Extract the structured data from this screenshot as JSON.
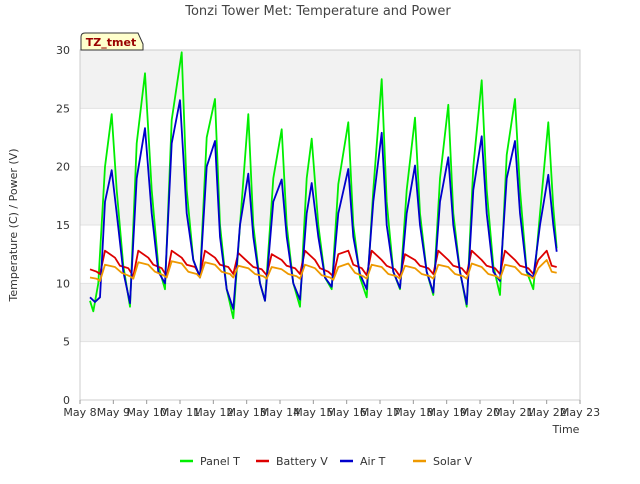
{
  "chart_data": {
    "type": "line",
    "title": "Tonzi Tower Met: Temperature and Power",
    "xlabel": "Time",
    "ylabel": "Temperature (C) / Power (V)",
    "badge": "TZ_tmet",
    "ylim": [
      0,
      30
    ],
    "yticks": [
      0,
      5,
      10,
      15,
      20,
      25,
      30
    ],
    "xlim": [
      8,
      23
    ],
    "xticks": [
      {
        "v": 8,
        "label": "May 8"
      },
      {
        "v": 9,
        "label": "May 9"
      },
      {
        "v": 10,
        "label": "May 10"
      },
      {
        "v": 11,
        "label": "May 11"
      },
      {
        "v": 12,
        "label": "May 12"
      },
      {
        "v": 13,
        "label": "May 13"
      },
      {
        "v": 14,
        "label": "May 14"
      },
      {
        "v": 15,
        "label": "May 15"
      },
      {
        "v": 16,
        "label": "May 16"
      },
      {
        "v": 17,
        "label": "May 17"
      },
      {
        "v": 18,
        "label": "May 18"
      },
      {
        "v": 19,
        "label": "May 19"
      },
      {
        "v": 20,
        "label": "May 20"
      },
      {
        "v": 21,
        "label": "May 21"
      },
      {
        "v": 22,
        "label": "May 22"
      },
      {
        "v": 23,
        "label": "May 23"
      }
    ],
    "grid": true,
    "legend_position": "bottom",
    "series": [
      {
        "name": "Panel T",
        "color": "#00ee00",
        "points": [
          [
            8.3,
            8.5
          ],
          [
            8.4,
            7.6
          ],
          [
            8.55,
            10.0
          ],
          [
            8.75,
            20.0
          ],
          [
            8.95,
            24.5
          ],
          [
            9.1,
            18.0
          ],
          [
            9.3,
            11.5
          ],
          [
            9.5,
            8.0
          ],
          [
            9.7,
            22.0
          ],
          [
            9.95,
            28.0
          ],
          [
            10.15,
            18.0
          ],
          [
            10.35,
            11.5
          ],
          [
            10.55,
            9.5
          ],
          [
            10.75,
            24.0
          ],
          [
            11.05,
            29.8
          ],
          [
            11.2,
            18.0
          ],
          [
            11.4,
            12.0
          ],
          [
            11.6,
            10.5
          ],
          [
            11.8,
            22.5
          ],
          [
            12.05,
            25.8
          ],
          [
            12.2,
            15.0
          ],
          [
            12.4,
            9.5
          ],
          [
            12.6,
            7.0
          ],
          [
            12.8,
            15.0
          ],
          [
            13.05,
            24.5
          ],
          [
            13.2,
            15.0
          ],
          [
            13.4,
            10.0
          ],
          [
            13.55,
            8.5
          ],
          [
            13.8,
            19.0
          ],
          [
            14.05,
            23.2
          ],
          [
            14.2,
            15.0
          ],
          [
            14.4,
            10.0
          ],
          [
            14.6,
            8.0
          ],
          [
            14.8,
            19.0
          ],
          [
            14.95,
            22.4
          ],
          [
            15.15,
            15.0
          ],
          [
            15.35,
            10.5
          ],
          [
            15.55,
            9.5
          ],
          [
            15.75,
            18.5
          ],
          [
            16.05,
            23.8
          ],
          [
            16.2,
            15.0
          ],
          [
            16.4,
            10.5
          ],
          [
            16.6,
            8.8
          ],
          [
            16.8,
            18.0
          ],
          [
            17.05,
            27.5
          ],
          [
            17.2,
            17.0
          ],
          [
            17.4,
            11.0
          ],
          [
            17.6,
            9.5
          ],
          [
            17.8,
            18.0
          ],
          [
            18.05,
            24.2
          ],
          [
            18.2,
            16.0
          ],
          [
            18.4,
            11.0
          ],
          [
            18.6,
            9.0
          ],
          [
            18.8,
            19.0
          ],
          [
            19.05,
            25.3
          ],
          [
            19.2,
            16.0
          ],
          [
            19.4,
            11.0
          ],
          [
            19.6,
            8.0
          ],
          [
            19.8,
            20.0
          ],
          [
            20.05,
            27.4
          ],
          [
            20.2,
            18.0
          ],
          [
            20.4,
            11.5
          ],
          [
            20.6,
            9.0
          ],
          [
            20.8,
            21.0
          ],
          [
            21.05,
            25.8
          ],
          [
            21.2,
            18.0
          ],
          [
            21.4,
            11.0
          ],
          [
            21.6,
            9.5
          ],
          [
            21.8,
            16.0
          ],
          [
            22.05,
            23.8
          ],
          [
            22.2,
            16.5
          ],
          [
            22.3,
            13.0
          ]
        ]
      },
      {
        "name": "Battery V",
        "color": "#dd0000",
        "points": [
          [
            8.3,
            11.2
          ],
          [
            8.5,
            11.0
          ],
          [
            8.6,
            10.8
          ],
          [
            8.75,
            12.8
          ],
          [
            9.05,
            12.2
          ],
          [
            9.2,
            11.5
          ],
          [
            9.45,
            11.3
          ],
          [
            9.6,
            10.6
          ],
          [
            9.75,
            12.8
          ],
          [
            10.05,
            12.2
          ],
          [
            10.2,
            11.6
          ],
          [
            10.45,
            11.3
          ],
          [
            10.6,
            10.6
          ],
          [
            10.75,
            12.8
          ],
          [
            11.05,
            12.2
          ],
          [
            11.2,
            11.6
          ],
          [
            11.45,
            11.4
          ],
          [
            11.6,
            10.7
          ],
          [
            11.75,
            12.8
          ],
          [
            12.05,
            12.2
          ],
          [
            12.2,
            11.6
          ],
          [
            12.45,
            11.4
          ],
          [
            12.6,
            10.8
          ],
          [
            12.75,
            12.6
          ],
          [
            13.05,
            11.8
          ],
          [
            13.2,
            11.4
          ],
          [
            13.45,
            11.2
          ],
          [
            13.6,
            10.7
          ],
          [
            13.75,
            12.5
          ],
          [
            14.05,
            12.0
          ],
          [
            14.2,
            11.5
          ],
          [
            14.45,
            11.3
          ],
          [
            14.6,
            10.8
          ],
          [
            14.75,
            12.8
          ],
          [
            15.05,
            12.0
          ],
          [
            15.2,
            11.3
          ],
          [
            15.45,
            11.0
          ],
          [
            15.6,
            10.6
          ],
          [
            15.75,
            12.5
          ],
          [
            16.05,
            12.8
          ],
          [
            16.2,
            11.6
          ],
          [
            16.45,
            11.3
          ],
          [
            16.6,
            10.7
          ],
          [
            16.75,
            12.8
          ],
          [
            17.05,
            12.0
          ],
          [
            17.2,
            11.5
          ],
          [
            17.45,
            11.2
          ],
          [
            17.6,
            10.6
          ],
          [
            17.75,
            12.5
          ],
          [
            18.05,
            12.0
          ],
          [
            18.2,
            11.5
          ],
          [
            18.45,
            11.3
          ],
          [
            18.6,
            10.8
          ],
          [
            18.75,
            12.8
          ],
          [
            19.05,
            12.0
          ],
          [
            19.2,
            11.5
          ],
          [
            19.45,
            11.3
          ],
          [
            19.6,
            10.8
          ],
          [
            19.75,
            12.8
          ],
          [
            20.05,
            12.0
          ],
          [
            20.2,
            11.5
          ],
          [
            20.45,
            11.3
          ],
          [
            20.6,
            10.8
          ],
          [
            20.75,
            12.8
          ],
          [
            21.05,
            12.0
          ],
          [
            21.2,
            11.5
          ],
          [
            21.45,
            11.3
          ],
          [
            21.6,
            10.8
          ],
          [
            21.75,
            12.0
          ],
          [
            22.0,
            12.8
          ],
          [
            22.15,
            11.5
          ],
          [
            22.3,
            11.4
          ]
        ]
      },
      {
        "name": "Air T",
        "color": "#0000cc",
        "points": [
          [
            8.3,
            8.8
          ],
          [
            8.45,
            8.4
          ],
          [
            8.6,
            8.8
          ],
          [
            8.75,
            17.0
          ],
          [
            8.95,
            19.7
          ],
          [
            9.1,
            16.0
          ],
          [
            9.3,
            11.0
          ],
          [
            9.5,
            8.3
          ],
          [
            9.7,
            19.0
          ],
          [
            9.95,
            23.3
          ],
          [
            10.15,
            16.0
          ],
          [
            10.35,
            11.0
          ],
          [
            10.55,
            10.0
          ],
          [
            10.75,
            22.0
          ],
          [
            11.0,
            25.7
          ],
          [
            11.2,
            16.0
          ],
          [
            11.4,
            12.0
          ],
          [
            11.6,
            10.5
          ],
          [
            11.8,
            20.0
          ],
          [
            12.05,
            22.2
          ],
          [
            12.2,
            14.0
          ],
          [
            12.4,
            9.5
          ],
          [
            12.6,
            7.8
          ],
          [
            12.8,
            15.0
          ],
          [
            13.05,
            19.4
          ],
          [
            13.2,
            14.0
          ],
          [
            13.4,
            10.0
          ],
          [
            13.55,
            8.5
          ],
          [
            13.8,
            17.0
          ],
          [
            14.05,
            18.9
          ],
          [
            14.2,
            14.0
          ],
          [
            14.4,
            10.0
          ],
          [
            14.6,
            8.6
          ],
          [
            14.8,
            16.0
          ],
          [
            14.95,
            18.6
          ],
          [
            15.15,
            14.0
          ],
          [
            15.35,
            10.5
          ],
          [
            15.55,
            9.7
          ],
          [
            15.75,
            16.0
          ],
          [
            16.05,
            19.8
          ],
          [
            16.2,
            14.0
          ],
          [
            16.4,
            10.8
          ],
          [
            16.6,
            9.5
          ],
          [
            16.8,
            17.0
          ],
          [
            17.05,
            22.9
          ],
          [
            17.2,
            15.0
          ],
          [
            17.4,
            11.0
          ],
          [
            17.6,
            9.6
          ],
          [
            17.8,
            16.0
          ],
          [
            18.05,
            20.1
          ],
          [
            18.2,
            15.0
          ],
          [
            18.4,
            11.0
          ],
          [
            18.6,
            9.2
          ],
          [
            18.8,
            17.0
          ],
          [
            19.05,
            20.8
          ],
          [
            19.2,
            15.0
          ],
          [
            19.4,
            11.0
          ],
          [
            19.6,
            8.2
          ],
          [
            19.8,
            18.0
          ],
          [
            20.05,
            22.6
          ],
          [
            20.2,
            16.0
          ],
          [
            20.4,
            11.0
          ],
          [
            20.6,
            10.2
          ],
          [
            20.8,
            19.0
          ],
          [
            21.05,
            22.2
          ],
          [
            21.2,
            16.0
          ],
          [
            21.4,
            11.0
          ],
          [
            21.6,
            10.5
          ],
          [
            21.8,
            15.0
          ],
          [
            22.05,
            19.3
          ],
          [
            22.2,
            15.0
          ],
          [
            22.3,
            12.7
          ]
        ]
      },
      {
        "name": "Solar V",
        "color": "#ee9900",
        "points": [
          [
            8.3,
            10.5
          ],
          [
            8.5,
            10.4
          ],
          [
            8.6,
            10.2
          ],
          [
            8.75,
            11.6
          ],
          [
            9.05,
            11.4
          ],
          [
            9.25,
            10.9
          ],
          [
            9.5,
            10.6
          ],
          [
            9.6,
            10.4
          ],
          [
            9.75,
            11.8
          ],
          [
            10.05,
            11.6
          ],
          [
            10.25,
            11.0
          ],
          [
            10.5,
            10.7
          ],
          [
            10.6,
            10.5
          ],
          [
            10.75,
            11.9
          ],
          [
            11.05,
            11.7
          ],
          [
            11.25,
            11.0
          ],
          [
            11.5,
            10.8
          ],
          [
            11.6,
            10.5
          ],
          [
            11.75,
            11.8
          ],
          [
            12.05,
            11.6
          ],
          [
            12.25,
            11.0
          ],
          [
            12.5,
            10.8
          ],
          [
            12.6,
            10.5
          ],
          [
            12.75,
            11.5
          ],
          [
            13.05,
            11.3
          ],
          [
            13.25,
            10.8
          ],
          [
            13.5,
            10.6
          ],
          [
            13.6,
            10.4
          ],
          [
            13.75,
            11.4
          ],
          [
            14.05,
            11.2
          ],
          [
            14.25,
            10.8
          ],
          [
            14.5,
            10.6
          ],
          [
            14.6,
            10.4
          ],
          [
            14.75,
            11.6
          ],
          [
            15.05,
            11.3
          ],
          [
            15.25,
            10.7
          ],
          [
            15.5,
            10.5
          ],
          [
            15.6,
            10.3
          ],
          [
            15.75,
            11.4
          ],
          [
            16.05,
            11.7
          ],
          [
            16.25,
            10.9
          ],
          [
            16.5,
            10.6
          ],
          [
            16.6,
            10.4
          ],
          [
            16.75,
            11.6
          ],
          [
            17.05,
            11.4
          ],
          [
            17.25,
            10.8
          ],
          [
            17.5,
            10.6
          ],
          [
            17.6,
            10.4
          ],
          [
            17.75,
            11.5
          ],
          [
            18.05,
            11.3
          ],
          [
            18.25,
            10.8
          ],
          [
            18.5,
            10.6
          ],
          [
            18.6,
            10.4
          ],
          [
            18.75,
            11.6
          ],
          [
            19.05,
            11.4
          ],
          [
            19.25,
            10.8
          ],
          [
            19.5,
            10.6
          ],
          [
            19.6,
            10.4
          ],
          [
            19.75,
            11.7
          ],
          [
            20.05,
            11.4
          ],
          [
            20.25,
            10.8
          ],
          [
            20.5,
            10.6
          ],
          [
            20.6,
            10.4
          ],
          [
            20.75,
            11.6
          ],
          [
            21.05,
            11.4
          ],
          [
            21.25,
            10.8
          ],
          [
            21.5,
            10.6
          ],
          [
            21.6,
            10.4
          ],
          [
            21.75,
            11.3
          ],
          [
            22.0,
            12.0
          ],
          [
            22.15,
            11.0
          ],
          [
            22.3,
            10.9
          ]
        ]
      }
    ]
  }
}
